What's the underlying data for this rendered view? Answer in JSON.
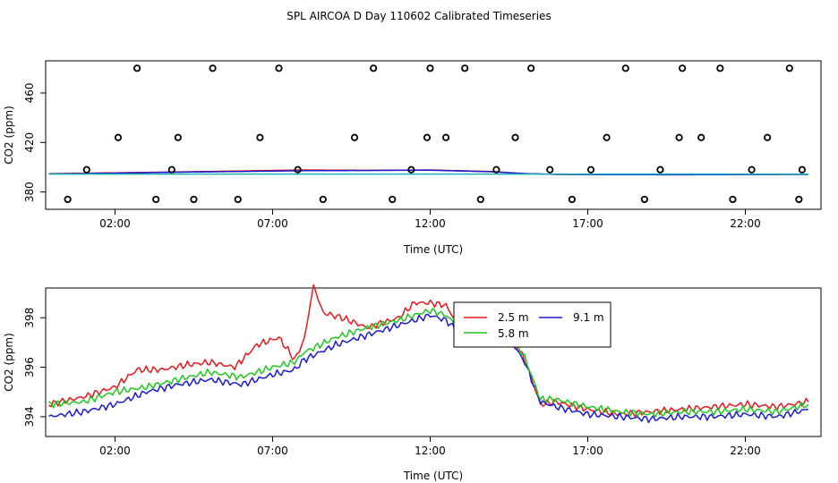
{
  "title": "SPL AIRCOA D  Day 110602  Calibrated Timeseries",
  "colors": {
    "red": "#e8181c",
    "green": "#1ec81e",
    "blue": "#1a1ad2",
    "cyan": "#18b4b4",
    "axis": "#000000"
  },
  "chart_data": [
    {
      "type": "scatter",
      "xlabel": "Time (UTC)",
      "ylabel": "CO2 (ppm)",
      "x_ticks": [
        "02:00",
        "07:00",
        "12:00",
        "17:00",
        "22:00"
      ],
      "x_tick_hours": [
        2,
        7,
        12,
        17,
        22
      ],
      "xlim_hours": [
        -0.2,
        24.4
      ],
      "y_ticks": [
        380,
        420,
        460
      ],
      "ylim": [
        366,
        486
      ],
      "markers": {
        "hours": [
          0.5,
          1.1,
          2.1,
          2.7,
          3.3,
          3.8,
          4.0,
          4.5,
          5.1,
          5.9,
          6.6,
          7.2,
          7.8,
          8.6,
          9.6,
          10.2,
          10.8,
          11.4,
          11.9,
          12.0,
          12.5,
          13.1,
          13.6,
          14.1,
          14.7,
          15.2,
          15.8,
          16.5,
          17.1,
          17.6,
          18.2,
          18.8,
          19.3,
          19.9,
          20.0,
          20.6,
          21.2,
          21.6,
          22.2,
          22.7,
          23.4,
          23.7,
          23.8
        ],
        "values": [
          374,
          398,
          424,
          480,
          374,
          398,
          424,
          374,
          480,
          374,
          424,
          480,
          398,
          374,
          424,
          480,
          374,
          398,
          424,
          480,
          424,
          480,
          374,
          398,
          424,
          480,
          398,
          374,
          398,
          424,
          480,
          374,
          398,
          424,
          480,
          424,
          480,
          374,
          398,
          424,
          480,
          374,
          398
        ]
      },
      "series": [
        {
          "color": "#e8181c",
          "x_hours": [
            -0.1,
            2,
            4,
            6,
            8,
            10,
            12,
            14,
            15,
            16,
            18,
            20,
            22,
            24.0
          ],
          "values": [
            394.8,
            395.5,
            396.2,
            397.0,
            397.8,
            397.5,
            397.8,
            396.5,
            394.8,
            394.2,
            394.1,
            394.0,
            394.2,
            394.3
          ]
        },
        {
          "color": "#1a1ad2",
          "x_hours": [
            -0.1,
            2,
            4,
            6,
            8,
            10,
            12,
            14,
            15,
            16,
            18,
            20,
            22,
            24.0
          ],
          "values": [
            394.6,
            395.2,
            396.0,
            396.6,
            397.2,
            397.4,
            397.6,
            396.3,
            394.9,
            394.2,
            394.0,
            393.9,
            394.1,
            394.2
          ]
        },
        {
          "color": "#18b4b4",
          "x_hours": [
            -0.1,
            24.0
          ],
          "values": [
            394.5,
            394.5
          ]
        }
      ]
    },
    {
      "type": "line",
      "xlabel": "Time (UTC)",
      "ylabel": "CO2 (ppm)",
      "x_ticks": [
        "02:00",
        "07:00",
        "12:00",
        "17:00",
        "22:00"
      ],
      "x_tick_hours": [
        2,
        7,
        12,
        17,
        22
      ],
      "xlim_hours": [
        -0.2,
        24.4
      ],
      "y_ticks": [
        394,
        396,
        398
      ],
      "ylim": [
        393.2,
        399.2
      ],
      "legend": {
        "position": "top-right of center",
        "entries": [
          "2.5 m",
          "9.1 m",
          "5.8 m"
        ]
      },
      "series": [
        {
          "name": "2.5 m",
          "color": "#e8181c",
          "x_hours": [
            -0.1,
            1,
            2,
            2.7,
            3.5,
            4.3,
            5,
            5.8,
            6.5,
            7.2,
            7.7,
            8,
            8.3,
            8.6,
            9.2,
            10,
            11,
            11.5,
            12,
            12.5,
            13,
            13.5,
            14,
            14.5,
            15,
            15.5,
            16,
            17,
            18,
            19,
            20,
            21,
            22,
            23,
            24
          ],
          "values": [
            394.5,
            394.8,
            395.2,
            395.9,
            395.9,
            396.1,
            396.2,
            396.0,
            396.9,
            397.2,
            396.3,
            397.1,
            399.3,
            398.2,
            398.0,
            397.6,
            398.0,
            398.6,
            398.6,
            398.5,
            397.5,
            398.0,
            398.1,
            397.4,
            396.3,
            394.5,
            394.6,
            394.3,
            394.1,
            394.2,
            394.3,
            394.4,
            394.5,
            394.4,
            394.6
          ]
        },
        {
          "name": "9.1 m",
          "color": "#1a1ad2",
          "x_hours": [
            -0.1,
            1,
            2,
            3,
            4,
            5,
            6,
            7,
            7.7,
            8,
            9,
            10,
            11,
            12,
            12.5,
            13,
            13.5,
            14,
            14.5,
            15,
            15.5,
            16,
            17,
            18,
            19,
            20,
            21,
            22,
            23,
            24
          ],
          "values": [
            394.0,
            394.2,
            394.5,
            395.0,
            395.3,
            395.5,
            395.3,
            395.7,
            395.9,
            396.3,
            396.9,
            397.3,
            397.7,
            398.1,
            397.9,
            397.3,
            397.5,
            397.8,
            397.2,
            396.2,
            394.6,
            394.4,
            394.1,
            394.0,
            393.9,
            394.0,
            394.0,
            394.1,
            394.0,
            394.3
          ]
        },
        {
          "name": "5.8 m",
          "color": "#1ec81e",
          "x_hours": [
            -0.1,
            1,
            2,
            3,
            4,
            5,
            6,
            7,
            7.7,
            8,
            9,
            10,
            11,
            12,
            12.5,
            13,
            13.5,
            14,
            14.5,
            15,
            15.5,
            16,
            17,
            18,
            19,
            20,
            21,
            22,
            23,
            24
          ],
          "values": [
            394.5,
            394.6,
            395.0,
            395.2,
            395.5,
            395.8,
            395.6,
            396.0,
            396.2,
            396.6,
            397.2,
            397.6,
            397.9,
            398.3,
            398.1,
            397.5,
            397.7,
            398.0,
            397.4,
            396.4,
            394.7,
            394.7,
            394.4,
            394.2,
            394.1,
            394.2,
            394.2,
            394.3,
            394.2,
            394.5
          ]
        }
      ]
    }
  ]
}
